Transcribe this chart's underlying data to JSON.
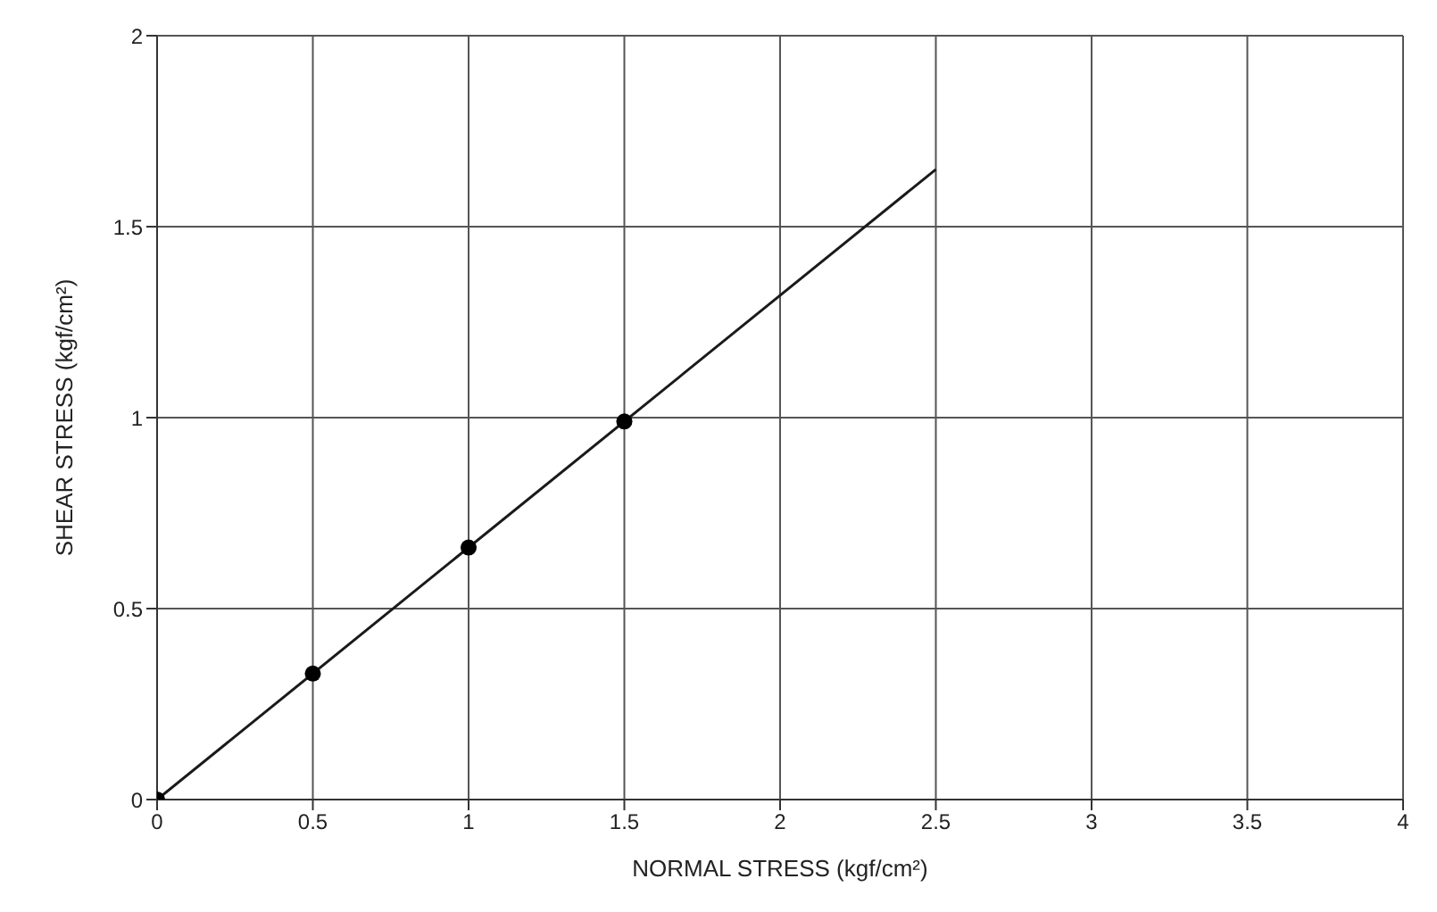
{
  "chart_data": {
    "type": "scatter",
    "xlabel": "NORMAL STRESS (kgf/cm²)",
    "ylabel": "SHEAR STRESS (kgf/cm²)",
    "xlim": [
      0,
      4
    ],
    "xticks": [
      0,
      0.5,
      1,
      1.5,
      2,
      2.5,
      3,
      3.5,
      4
    ],
    "ylim": [
      0,
      2
    ],
    "yticks": [
      0,
      0.5,
      1,
      1.5,
      2
    ],
    "grid": true,
    "marker": "circle",
    "series": [
      {
        "color": "#000000",
        "x": [
          0,
          0.5,
          1,
          1.5
        ],
        "values": [
          0,
          0.33,
          0.66,
          0.99
        ]
      },
      {
        "type": "line",
        "color": "#1a1a1a",
        "marker": "none",
        "x": [
          0,
          2.5
        ],
        "values": [
          0,
          1.65
        ]
      }
    ]
  }
}
